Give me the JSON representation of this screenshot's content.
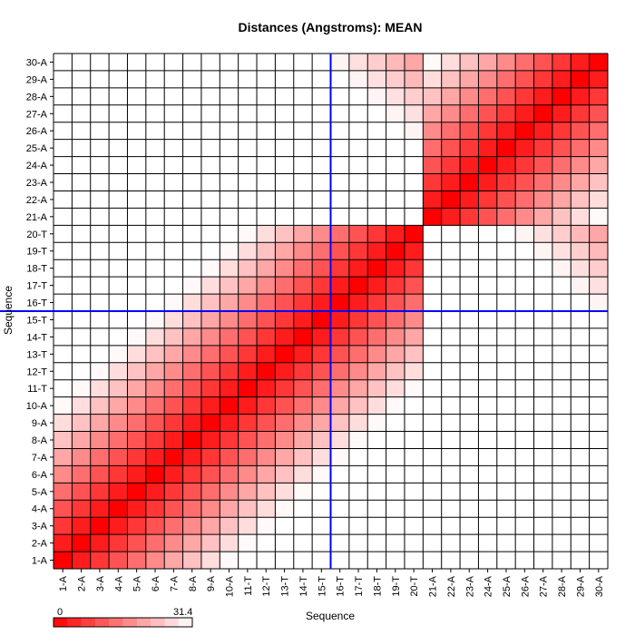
{
  "chart_data": {
    "type": "heatmap",
    "title": "Distances (Angstroms):  MEAN",
    "xlabel": "Sequence",
    "ylabel": "Sequence",
    "labels": [
      "1-A",
      "2-A",
      "3-A",
      "4-A",
      "5-A",
      "6-A",
      "7-A",
      "8-A",
      "9-A",
      "10-A",
      "11-T",
      "12-T",
      "13-T",
      "14-T",
      "15-T",
      "16-T",
      "17-T",
      "18-T",
      "19-T",
      "20-T",
      "21-A",
      "22-A",
      "23-A",
      "24-A",
      "25-A",
      "26-A",
      "27-A",
      "28-A",
      "29-A",
      "30-A"
    ],
    "value_range": [
      0,
      31.4
    ],
    "colorbar": {
      "min_label": "0",
      "max_label": "31.4",
      "low_color": "#ff0000",
      "high_color": "#ffffff"
    },
    "strand1_range": [
      1,
      20
    ],
    "strand2_range": [
      21,
      30
    ],
    "intra_step_angstrom": 3.4,
    "crosshair": {
      "x_label": "15-T",
      "y_label": "15-T",
      "color": "#0000ff"
    },
    "grid": true
  }
}
